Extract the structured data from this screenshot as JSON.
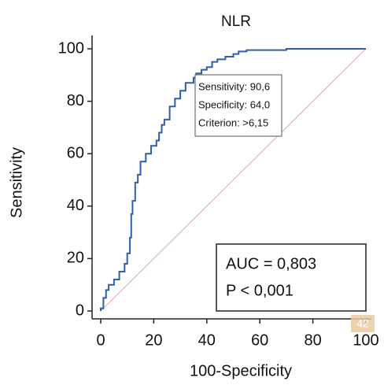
{
  "chart_data": {
    "type": "line",
    "title": "NLR",
    "x_label": "100-Specificity",
    "y_label": "Sensitivity",
    "x": [
      0,
      0,
      1,
      1,
      2,
      2,
      3,
      3,
      5,
      5,
      7,
      7,
      9,
      9,
      10,
      10,
      11,
      11,
      11.5,
      11.5,
      12,
      12,
      13,
      13,
      14,
      14,
      15,
      15,
      17,
      17,
      19,
      19,
      21,
      21,
      22,
      22,
      23,
      23,
      24,
      24,
      26,
      26,
      28,
      28,
      30,
      30,
      32,
      32,
      35,
      35,
      36,
      36,
      38,
      38,
      40,
      40,
      42,
      42,
      44,
      44,
      47,
      47,
      50,
      50,
      52,
      52,
      55,
      55,
      70,
      70,
      100
    ],
    "series": [
      {
        "color": "#2f5fa8",
        "values": [
          0,
          1,
          1,
          5,
          5,
          8,
          8,
          10,
          10,
          12,
          12,
          15,
          15,
          18,
          18,
          22,
          22,
          28,
          28,
          37,
          37,
          42,
          42,
          49,
          49,
          52,
          52,
          57,
          57,
          60,
          60,
          63,
          63,
          65,
          65,
          68,
          68,
          71,
          71,
          73,
          73,
          78,
          78,
          81,
          81,
          84,
          84,
          87,
          87,
          89,
          89,
          90.6,
          90.6,
          92,
          92,
          93,
          93,
          95,
          95,
          96,
          96,
          97,
          97,
          98,
          98,
          99,
          99,
          99.5,
          99.5,
          100,
          100
        ]
      }
    ],
    "xlim": [
      0,
      100
    ],
    "ylim": [
      0,
      100
    ],
    "xticks": [
      0,
      20,
      40,
      60,
      80,
      100
    ],
    "yticks": [
      0,
      20,
      40,
      60,
      80,
      100
    ],
    "criterion_box": [
      "Sensitivity: 90,6",
      "Specificity: 64,0",
      "Criterion: >6,15"
    ],
    "stats_box": [
      "AUC = 0,803",
      "P < 0,001"
    ],
    "page_badge": "42"
  }
}
